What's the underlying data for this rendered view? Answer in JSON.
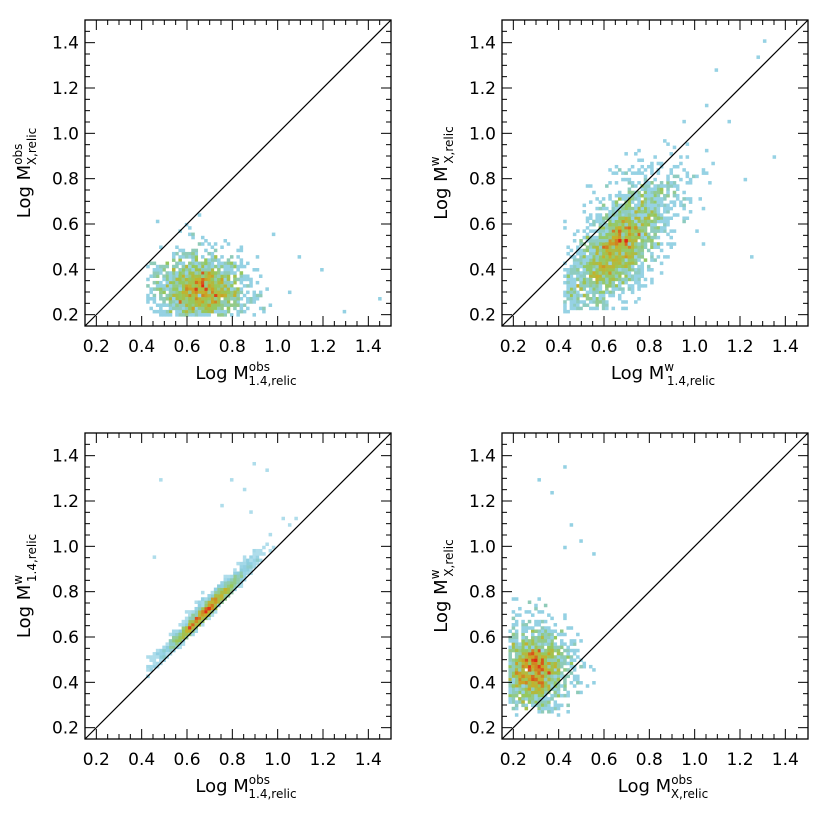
{
  "chart_data": [
    {
      "type": "heatmap",
      "xlabel": {
        "base": "Log M",
        "sup": "obs",
        "sub": "1.4,relic"
      },
      "ylabel": {
        "base": "Log M",
        "sup": "obs",
        "sub": "X,relic"
      },
      "xlim": [
        0.15,
        1.5
      ],
      "ylim": [
        0.15,
        1.5
      ],
      "xticks": [
        "0.2",
        "0.4",
        "0.6",
        "0.8",
        "1.0",
        "1.2",
        "1.4"
      ],
      "yticks": [
        "0.2",
        "0.4",
        "0.6",
        "0.8",
        "1.0",
        "1.2",
        "1.4"
      ],
      "reference_line": "y = x",
      "density": {
        "center": [
          0.66,
          0.31
        ],
        "spread": [
          0.11,
          0.085
        ],
        "xrange": [
          0.42,
          1.0
        ],
        "yrange": [
          0.2,
          0.83
        ],
        "n": 1800,
        "outliers": [
          [
            1.1,
            0.45
          ],
          [
            1.2,
            0.4
          ],
          [
            1.3,
            0.22
          ],
          [
            1.45,
            0.27
          ],
          [
            0.98,
            0.55
          ],
          [
            1.05,
            0.3
          ]
        ]
      }
    },
    {
      "type": "heatmap",
      "xlabel": {
        "base": "Log M",
        "sup": "w",
        "sub": "1.4,relic"
      },
      "ylabel": {
        "base": "Log M",
        "sup": "w",
        "sub": "X,relic"
      },
      "xlim": [
        0.15,
        1.5
      ],
      "ylim": [
        0.15,
        1.5
      ],
      "xticks": [
        "0.2",
        "0.4",
        "0.6",
        "0.8",
        "1.0",
        "1.2",
        "1.4"
      ],
      "yticks": [
        "0.2",
        "0.4",
        "0.6",
        "0.8",
        "1.0",
        "1.2",
        "1.4"
      ],
      "reference_line": "y = x",
      "density": {
        "center": [
          0.66,
          0.5
        ],
        "spread": [
          0.13,
          0.12
        ],
        "slope": 0.85,
        "xrange": [
          0.42,
          1.3
        ],
        "yrange": [
          0.22,
          1.0
        ],
        "n": 2600,
        "outliers": [
          [
            1.28,
            1.33
          ],
          [
            1.31,
            1.41
          ],
          [
            1.15,
            1.05
          ],
          [
            1.25,
            0.45
          ],
          [
            1.22,
            0.8
          ],
          [
            1.35,
            0.9
          ],
          [
            1.05,
            1.13
          ],
          [
            1.1,
            1.28
          ],
          [
            0.95,
            1.05
          ]
        ]
      }
    },
    {
      "type": "heatmap",
      "xlabel": {
        "base": "Log M",
        "sup": "obs",
        "sub": "1.4,relic"
      },
      "ylabel": {
        "base": "Log M",
        "sup": "w",
        "sub": "1.4,relic"
      },
      "xlim": [
        0.15,
        1.5
      ],
      "ylim": [
        0.15,
        1.5
      ],
      "xticks": [
        "0.2",
        "0.4",
        "0.6",
        "0.8",
        "1.0",
        "1.2",
        "1.4"
      ],
      "yticks": [
        "0.2",
        "0.4",
        "0.6",
        "0.8",
        "1.0",
        "1.2",
        "1.4"
      ],
      "reference_line": "y = x",
      "density": {
        "center": [
          0.68,
          0.71
        ],
        "spread": [
          0.1,
          0.025
        ],
        "slope": 1.02,
        "xrange": [
          0.42,
          1.1
        ],
        "yrange": [
          0.42,
          1.4
        ],
        "above_line": true,
        "n": 2400,
        "outliers": [
          [
            0.48,
            1.29
          ],
          [
            0.46,
            0.95
          ],
          [
            0.8,
            1.3
          ],
          [
            0.85,
            1.25
          ],
          [
            0.9,
            1.37
          ],
          [
            0.95,
            1.33
          ],
          [
            0.75,
            1.18
          ],
          [
            0.88,
            1.15
          ],
          [
            1.02,
            1.12
          ]
        ]
      }
    },
    {
      "type": "heatmap",
      "xlabel": {
        "base": "Log M",
        "sup": "obs",
        "sub": "X,relic"
      },
      "ylabel": {
        "base": "Log M",
        "sup": "w",
        "sub": "X,relic"
      },
      "xlim": [
        0.15,
        1.5
      ],
      "ylim": [
        0.15,
        1.5
      ],
      "xticks": [
        "0.2",
        "0.4",
        "0.6",
        "0.8",
        "1.0",
        "1.2",
        "1.4"
      ],
      "yticks": [
        "0.2",
        "0.4",
        "0.6",
        "0.8",
        "1.0",
        "1.2",
        "1.4"
      ],
      "reference_line": "y = x",
      "density": {
        "center": [
          0.29,
          0.46
        ],
        "spread": [
          0.085,
          0.1
        ],
        "xrange": [
          0.18,
          0.7
        ],
        "yrange": [
          0.26,
          0.9
        ],
        "n": 1800,
        "outliers": [
          [
            0.43,
            1.35
          ],
          [
            0.37,
            1.23
          ],
          [
            0.32,
            1.3
          ],
          [
            0.5,
            1.03
          ],
          [
            0.45,
            1.1
          ],
          [
            0.55,
            0.97
          ],
          [
            0.42,
            1.0
          ]
        ]
      }
    }
  ]
}
